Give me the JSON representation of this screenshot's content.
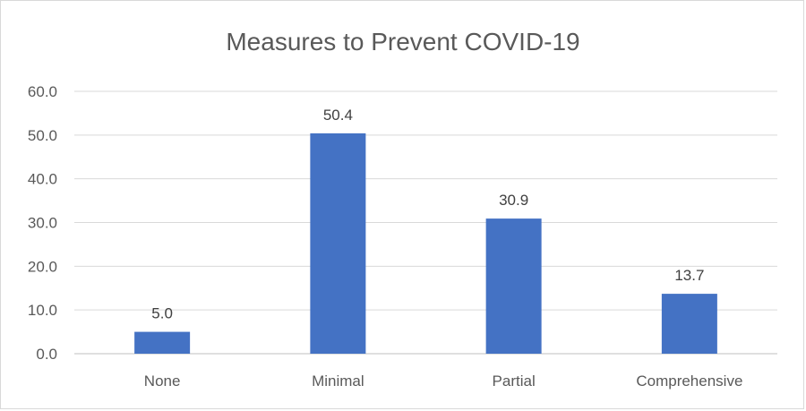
{
  "chart_data": {
    "type": "bar",
    "title": "Measures to Prevent COVID-19",
    "categories": [
      "None",
      "Minimal",
      "Partial",
      "Comprehensive"
    ],
    "values": [
      5.0,
      50.4,
      30.9,
      13.7
    ],
    "data_labels": [
      "5.0",
      "50.4",
      "30.9",
      "13.7"
    ],
    "ylim": [
      0,
      60
    ],
    "yticks": [
      0,
      10,
      20,
      30,
      40,
      50,
      60
    ],
    "ytick_labels": [
      "0.0",
      "10.0",
      "20.0",
      "30.0",
      "40.0",
      "50.0",
      "60.0"
    ],
    "grid": true,
    "legend": false,
    "bar_color": "#4472c4"
  }
}
